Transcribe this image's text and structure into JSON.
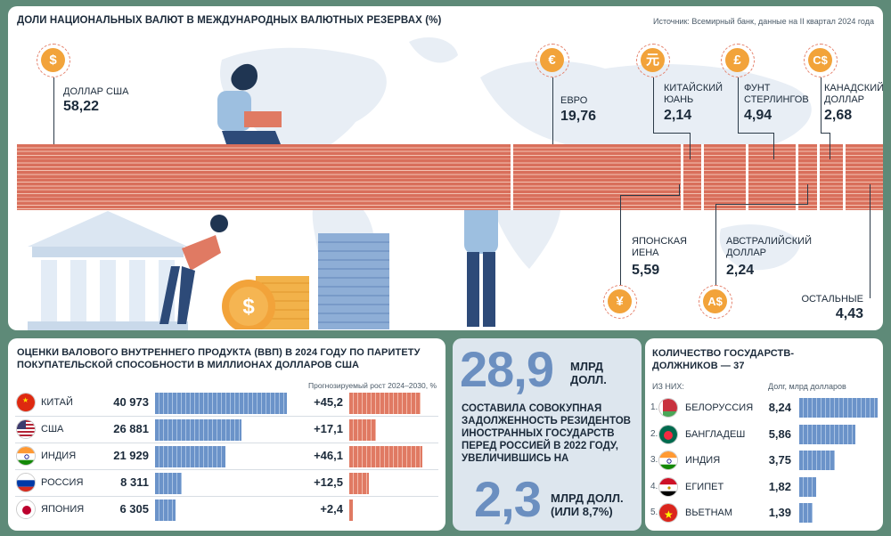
{
  "reserves": {
    "title": "ДОЛИ НАЦИОНАЛЬНЫХ ВАЛЮТ В МЕЖДУНАРОДНЫХ ВАЛЮТНЫХ РЕЗЕРВАХ (%)",
    "source": "Источник: Всемирный банк, данные на II квартал 2024 года",
    "colors": {
      "bar": "#d96f5b",
      "coin": "#f2a33a"
    },
    "currencies": [
      {
        "icon": "dollar-icon",
        "symbol": "$",
        "name": "ДОЛЛАР США",
        "value": "58,22",
        "share": 58.22
      },
      {
        "icon": "euro-icon",
        "symbol": "€",
        "name": "ЕВРО",
        "value": "19,76",
        "share": 19.76
      },
      {
        "icon": "yen-icon",
        "symbol": "¥",
        "name": "ЯПОНСКАЯ ИЕНА",
        "value": "5,59",
        "share": 5.59
      },
      {
        "icon": "yuan-icon",
        "symbol": "元",
        "name": "КИТАЙСКИЙ ЮАНЬ",
        "value": "2,14",
        "share": 2.14
      },
      {
        "icon": "pound-icon",
        "symbol": "£",
        "name": "ФУНТ СТЕРЛИНГОВ",
        "value": "4,94",
        "share": 4.94
      },
      {
        "icon": "aud-icon",
        "symbol": "A$",
        "name": "АВСТРАЛИЙСКИЙ ДОЛЛАР",
        "value": "2,24",
        "share": 2.24
      },
      {
        "icon": "cad-icon",
        "symbol": "C$",
        "name": "КАНАДСКИЙ ДОЛЛАР",
        "value": "2,68",
        "share": 2.68
      },
      {
        "icon": "",
        "symbol": "",
        "name": "ОСТАЛЬНЫЕ",
        "value": "4,43",
        "share": 4.43
      }
    ]
  },
  "gdp": {
    "title": "ОЦЕНКИ ВАЛОВОГО ВНУТРЕННЕГО ПРОДУКТА (ВВП) В 2024 ГОДУ ПО ПАРИТЕТУ ПОКУПАТЕЛЬСКОЙ СПОСОБНОСТИ В МИЛЛИОНАХ ДОЛЛАРОВ США",
    "growth_label": "Прогнозируемый рост 2024–2030, %",
    "rows": [
      {
        "flag": "china-flag-icon",
        "country": "КИТАЙ",
        "gdp": "40 973",
        "gdp_num": 40973,
        "growth": "+45,2",
        "growth_num": 45.2
      },
      {
        "flag": "usa-flag-icon",
        "country": "США",
        "gdp": "26 881",
        "gdp_num": 26881,
        "growth": "+17,1",
        "growth_num": 17.1
      },
      {
        "flag": "india-flag-icon",
        "country": "ИНДИЯ",
        "gdp": "21 929",
        "gdp_num": 21929,
        "growth": "+46,1",
        "growth_num": 46.1
      },
      {
        "flag": "russia-flag-icon",
        "country": "РОССИЯ",
        "gdp": "8 311",
        "gdp_num": 8311,
        "growth": "+12,5",
        "growth_num": 12.5
      },
      {
        "flag": "japan-flag-icon",
        "country": "ЯПОНИЯ",
        "gdp": "6 305",
        "gdp_num": 6305,
        "growth": "+2,4",
        "growth_num": 2.4
      }
    ]
  },
  "debt": {
    "big_value": "28,9",
    "big_unit": "МЛРД ДОЛЛ.",
    "text": "СОСТАВИЛА СОВОКУПНАЯ ЗАДОЛЖЕННОСТЬ РЕЗИДЕНТОВ ИНОСТРАННЫХ ГОСУДАРСТВ ПЕРЕД РОССИЕЙ В 2022 ГОДУ, УВЕЛИЧИВШИСЬ НА",
    "inc_value": "2,3",
    "inc_unit": "МЛРД ДОЛЛ. (ИЛИ 8,7%)"
  },
  "debtors": {
    "title": "КОЛИЧЕСТВО ГОСУДАРСТВ-ДОЛЖНИКОВ — 37",
    "of_them": "ИЗ НИХ:",
    "debt_label": "Долг, млрд долларов",
    "rows": [
      {
        "num": "1.",
        "flag": "belarus-flag-icon",
        "country": "БЕЛОРУССИЯ",
        "value": "8,24",
        "value_num": 8.24
      },
      {
        "num": "2.",
        "flag": "bangladesh-flag-icon",
        "country": "БАНГЛАДЕШ",
        "value": "5,86",
        "value_num": 5.86
      },
      {
        "num": "3.",
        "flag": "india-flag-icon",
        "country": "ИНДИЯ",
        "value": "3,75",
        "value_num": 3.75
      },
      {
        "num": "4.",
        "flag": "egypt-flag-icon",
        "country": "ЕГИПЕТ",
        "value": "1,82",
        "value_num": 1.82
      },
      {
        "num": "5.",
        "flag": "vietnam-flag-icon",
        "country": "ВЬЕТНАМ",
        "value": "1,39",
        "value_num": 1.39
      }
    ]
  }
}
